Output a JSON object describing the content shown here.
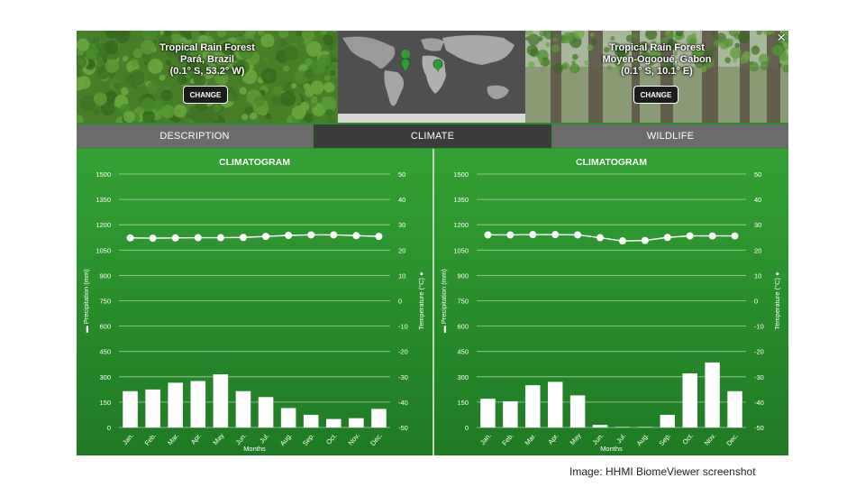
{
  "locations": [
    {
      "name": "Tropical Rain Forest",
      "region": "Pará, Brazil",
      "coords": "(0.1° S, 53.2° W)",
      "change_label": "CHANGE"
    },
    {
      "name": "Tropical Rain Forest",
      "region": "Moyen-Ogooué, Gabon",
      "coords": "(0.1° S, 10.1° E)",
      "change_label": "CHANGE"
    }
  ],
  "close_label": "×",
  "tabs": [
    {
      "label": "DESCRIPTION",
      "active": false
    },
    {
      "label": "CLIMATE",
      "active": true
    },
    {
      "label": "WILDLIFE",
      "active": false
    }
  ],
  "colors": {
    "tab_active": "#3b3b3b",
    "tab_inactive": "#6b6b6b",
    "chart_green": "#2e9a2e",
    "marker": "#2f9e32"
  },
  "credit": "Image: HHMI BiomeViewer screenshot",
  "chart_data": [
    {
      "type": "bar",
      "title": "CLIMATOGRAM",
      "categories": [
        "Jan.",
        "Feb.",
        "Mar.",
        "Apr.",
        "May",
        "Jun.",
        "Jul.",
        "Aug.",
        "Sep.",
        "Oct.",
        "Nov.",
        "Dec."
      ],
      "xlabel": "Months",
      "ylabel": "Precipitation (mm)",
      "y2label": "Temperature (°C)",
      "ylim": [
        0,
        1500
      ],
      "y2lim": [
        -50,
        50
      ],
      "yticks": [
        "1500",
        "1350",
        "1200",
        "1050",
        "900",
        "750",
        "600",
        "450",
        "300",
        "150",
        "0"
      ],
      "y2ticks": [
        "50",
        "40",
        "30",
        "20",
        "10",
        "0",
        "-10",
        "-20",
        "-30",
        "-40",
        "-50"
      ],
      "series": [
        {
          "name": "Precipitation (mm)",
          "type": "bar",
          "values": [
            215,
            225,
            265,
            275,
            315,
            215,
            180,
            115,
            75,
            50,
            55,
            110
          ]
        },
        {
          "name": "Temperature (°C)",
          "type": "line",
          "values": [
            24.8,
            24.7,
            24.8,
            24.9,
            24.9,
            25.0,
            25.4,
            25.8,
            26.0,
            26.0,
            25.7,
            25.4
          ]
        }
      ],
      "grid": true,
      "legend": "axis-labels"
    },
    {
      "type": "bar",
      "title": "CLIMATOGRAM",
      "categories": [
        "Jan.",
        "Feb.",
        "Mar.",
        "Apr.",
        "May",
        "Jun.",
        "Jul.",
        "Aug.",
        "Sep.",
        "Oct.",
        "Nov.",
        "Dec."
      ],
      "xlabel": "Months",
      "ylabel": "Precipitation (mm)",
      "y2label": "Temperature (°C)",
      "ylim": [
        0,
        1500
      ],
      "y2lim": [
        -50,
        50
      ],
      "yticks": [
        "1500",
        "1350",
        "1200",
        "1050",
        "900",
        "750",
        "600",
        "450",
        "300",
        "150",
        "0"
      ],
      "y2ticks": [
        "50",
        "40",
        "30",
        "20",
        "10",
        "0",
        "-10",
        "-20",
        "-30",
        "-40",
        "-50"
      ],
      "series": [
        {
          "name": "Precipitation (mm)",
          "type": "bar",
          "values": [
            170,
            155,
            250,
            270,
            190,
            15,
            3,
            3,
            75,
            320,
            385,
            215
          ]
        },
        {
          "name": "Temperature (°C)",
          "type": "line",
          "values": [
            26.0,
            26.0,
            26.1,
            26.1,
            26.0,
            24.9,
            23.6,
            23.8,
            25.0,
            25.6,
            25.6,
            25.6
          ]
        }
      ],
      "grid": true,
      "legend": "axis-labels"
    }
  ]
}
